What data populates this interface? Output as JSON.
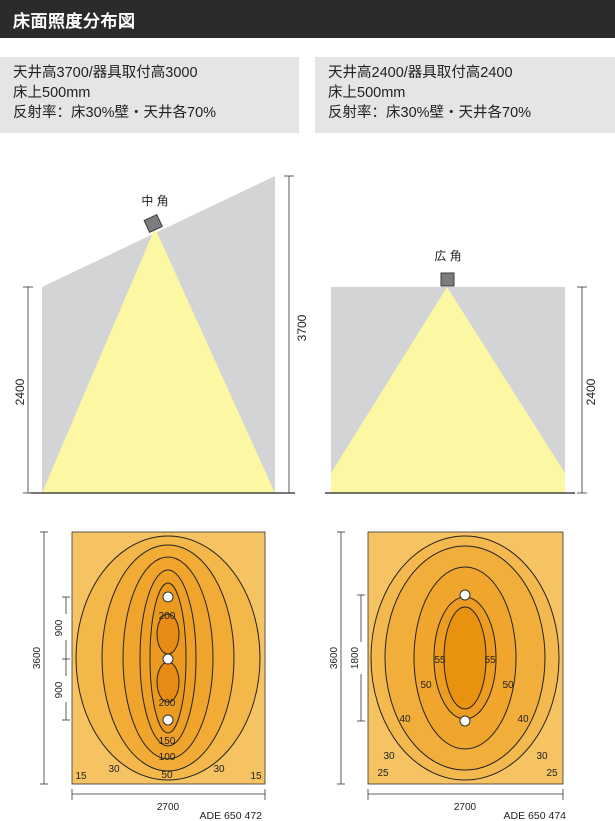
{
  "header": {
    "title": "床面照度分布図"
  },
  "conditions": {
    "left": {
      "ceiling_line": "天井高3700/器具取付高3000",
      "floor_line": "床上500mm",
      "reflect_line": "反射率：床30%壁・天井各70%"
    },
    "right": {
      "ceiling_line": "天井高2400/器具取付高2400",
      "floor_line": "床上500mm",
      "reflect_line": "反射率：床30%壁・天井各70%"
    }
  },
  "left_diagram": {
    "beam_label": "中 角",
    "dim_high": "3700",
    "dim_low": "2400",
    "plan": {
      "dim_height": "3600",
      "dim_upper": "900",
      "dim_lower": "900",
      "dim_width": "2700",
      "contour_labels": [
        "200",
        "200",
        "150",
        "100",
        "50",
        "30",
        "30",
        "15",
        "15"
      ],
      "model": "ADE 650 472"
    }
  },
  "right_diagram": {
    "beam_label": "広 角",
    "dim_height": "2400",
    "plan": {
      "dim_height": "3600",
      "dim_mid": "1800",
      "dim_width": "2700",
      "contour_labels": [
        "55",
        "55",
        "50",
        "50",
        "40",
        "40",
        "30",
        "30",
        "25",
        "25"
      ],
      "model": "ADE 650 474"
    }
  },
  "colors": {
    "header_bg": "#2b2b2b",
    "condition_bg": "#e5e5e5",
    "room_gray": "#d3d4d6",
    "beam_yellow": "#fbf7a3",
    "contour_light": "#f6c363",
    "contour_mid": "#f2ac36",
    "contour_deep": "#eda025",
    "contour_core": "#e88b14"
  }
}
